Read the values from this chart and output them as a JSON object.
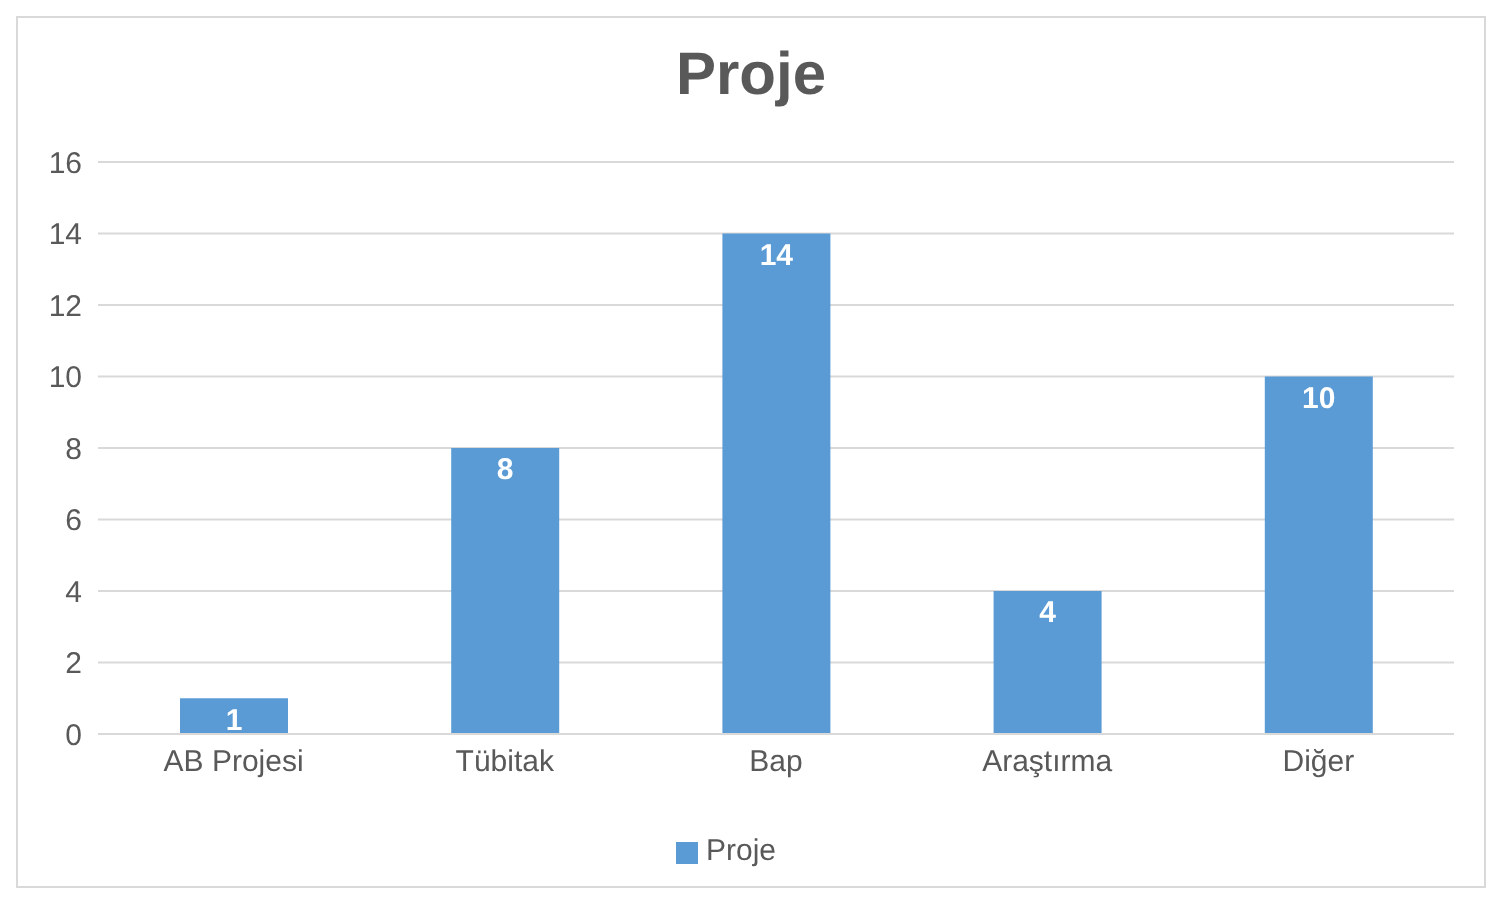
{
  "chart_data": {
    "type": "bar",
    "title": "Proje",
    "categories": [
      "AB Projesi",
      "Tübitak",
      "Bap",
      "Araştırma",
      "Diğer"
    ],
    "series": [
      {
        "name": "Proje",
        "color": "#5b9bd5",
        "values": [
          1,
          8,
          14,
          4,
          10
        ]
      }
    ],
    "ylim": [
      0,
      16
    ],
    "yticks": [
      0,
      2,
      4,
      6,
      8,
      10,
      12,
      14,
      16
    ],
    "grid": "y",
    "legend": "bottom",
    "data_labels": true
  }
}
